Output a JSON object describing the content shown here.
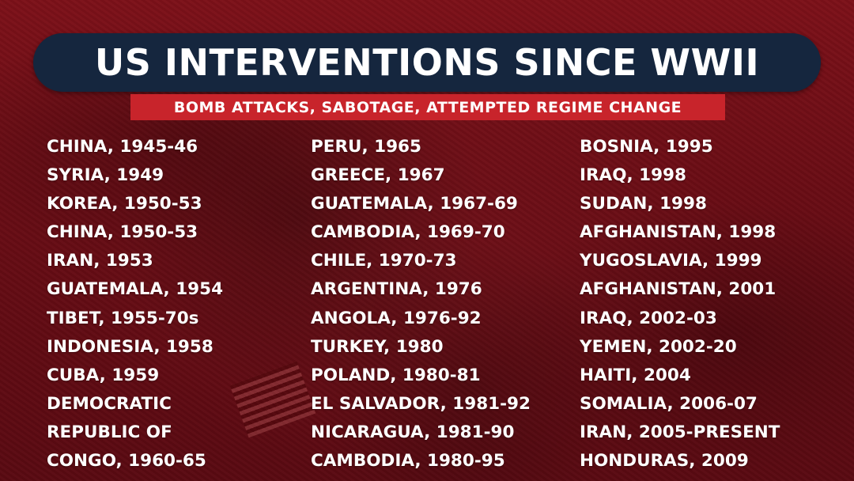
{
  "header": {
    "title": "US INTERVENTIONS SINCE WWII",
    "subtitle": "BOMB ATTACKS, SABOTAGE, ATTEMPTED REGIME CHANGE"
  },
  "columns": [
    [
      "CHINA, 1945-46",
      "SYRIA, 1949",
      "KOREA, 1950-53",
      "CHINA, 1950-53",
      "IRAN, 1953",
      "GUATEMALA, 1954",
      "TIBET, 1955-70s",
      "INDONESIA, 1958",
      "CUBA, 1959",
      "DEMOCRATIC",
      "REPUBLIC OF",
      "CONGO, 1960-65"
    ],
    [
      "PERU, 1965",
      "GREECE, 1967",
      "GUATEMALA, 1967-69",
      "CAMBODIA, 1969-70",
      "CHILE, 1970-73",
      "ARGENTINA, 1976",
      "ANGOLA, 1976-92",
      "TURKEY, 1980",
      "POLAND, 1980-81",
      "EL SALVADOR, 1981-92",
      "NICARAGUA, 1981-90",
      "CAMBODIA, 1980-95"
    ],
    [
      "BOSNIA, 1995",
      "IRAQ, 1998",
      "SUDAN, 1998",
      "AFGHANISTAN, 1998",
      "YUGOSLAVIA, 1999",
      "AFGHANISTAN, 2001",
      "IRAQ, 2002-03",
      "YEMEN, 2002-20",
      "HAITI, 2004",
      "SOMALIA, 2006-07",
      "IRAN, 2005-PRESENT",
      "HONDURAS, 2009"
    ]
  ],
  "colors": {
    "background": "#6a0d15",
    "title_pill": "#15263e",
    "subtitle_box": "#c8242b",
    "text": "#ffffff"
  }
}
